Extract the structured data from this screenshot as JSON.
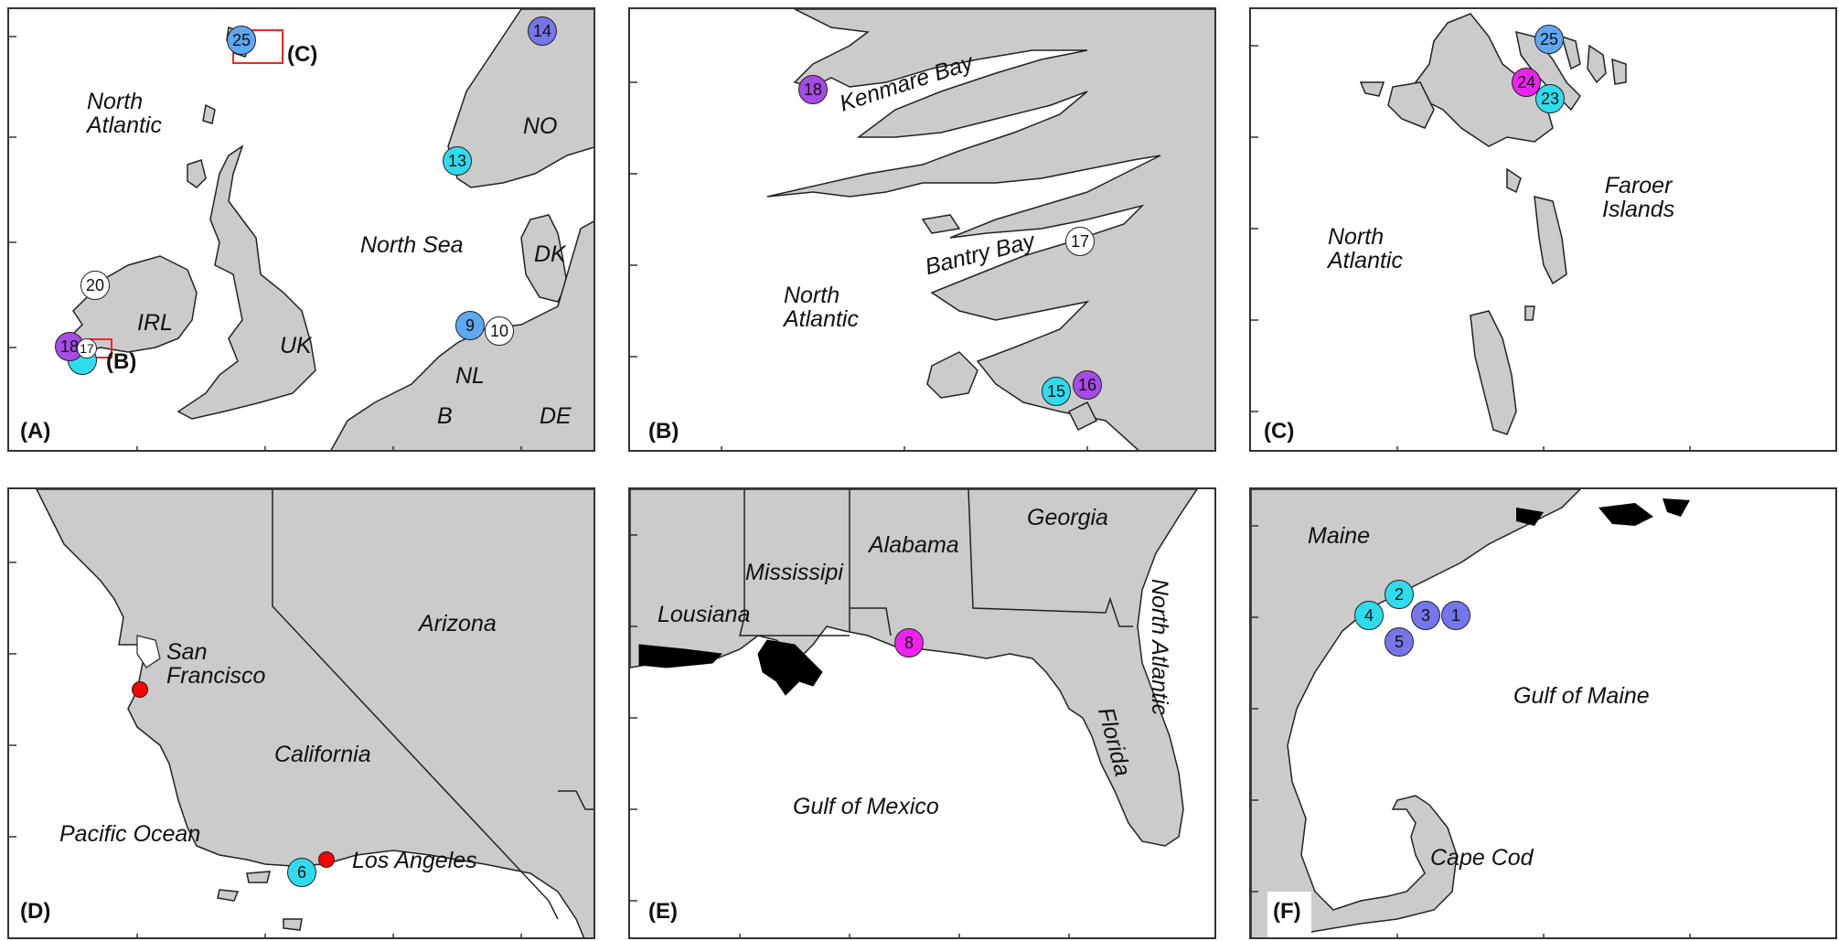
{
  "colors": {
    "land": "#cbcbcb",
    "coast": "#222222",
    "cyan": "#2edcee",
    "blue": "#5ea7f2",
    "indigo": "#7676ea",
    "purple": "#a64ce6",
    "magenta": "#ee22ee",
    "white": "#ffffff",
    "red": "#ff0000"
  },
  "panels": {
    "a": {
      "label": "(A)",
      "texts": {
        "north_atlantic": "North\nAtlantic",
        "north_sea": "North Sea",
        "no": "NO",
        "dk": "DK",
        "irl": "IRL",
        "uk": "UK",
        "nl": "NL",
        "b": "B",
        "de": "DE",
        "inset_b": "(B)",
        "inset_c": "(C)"
      },
      "markers": [
        "25",
        "14",
        "13",
        "20",
        "9",
        "10",
        "18",
        "17"
      ]
    },
    "b": {
      "label": "(B)",
      "texts": {
        "kenmare": "Kenmare Bay",
        "bantry": "Bantry Bay",
        "north_atlantic": "North\nAtlantic"
      },
      "markers": [
        "18",
        "17",
        "15",
        "16"
      ]
    },
    "c": {
      "label": "(C)",
      "texts": {
        "faroer": "Faroer\nIslands",
        "north_atlantic": "North\nAtlantic"
      },
      "markers": [
        "25",
        "24",
        "23"
      ]
    },
    "d": {
      "label": "(D)",
      "texts": {
        "sf": "San\nFrancisco",
        "arizona": "Arizona",
        "california": "California",
        "pacific": "Pacific Ocean",
        "la": "Los Angeles"
      },
      "markers": [
        "6"
      ]
    },
    "e": {
      "label": "(E)",
      "texts": {
        "georgia": "Georgia",
        "alabama": "Alabama",
        "mississipi": "Mississipi",
        "lousiana": "Lousiana",
        "north_atlantic": "North Atlantic",
        "florida": "Florida",
        "gulf": "Gulf of Mexico"
      },
      "markers": [
        "8"
      ]
    },
    "f": {
      "label": "(F)",
      "texts": {
        "maine": "Maine",
        "gulf": "Gulf of Maine",
        "cape_cod": "Cape Cod"
      },
      "markers": [
        "2",
        "4",
        "3",
        "1",
        "5"
      ]
    }
  }
}
